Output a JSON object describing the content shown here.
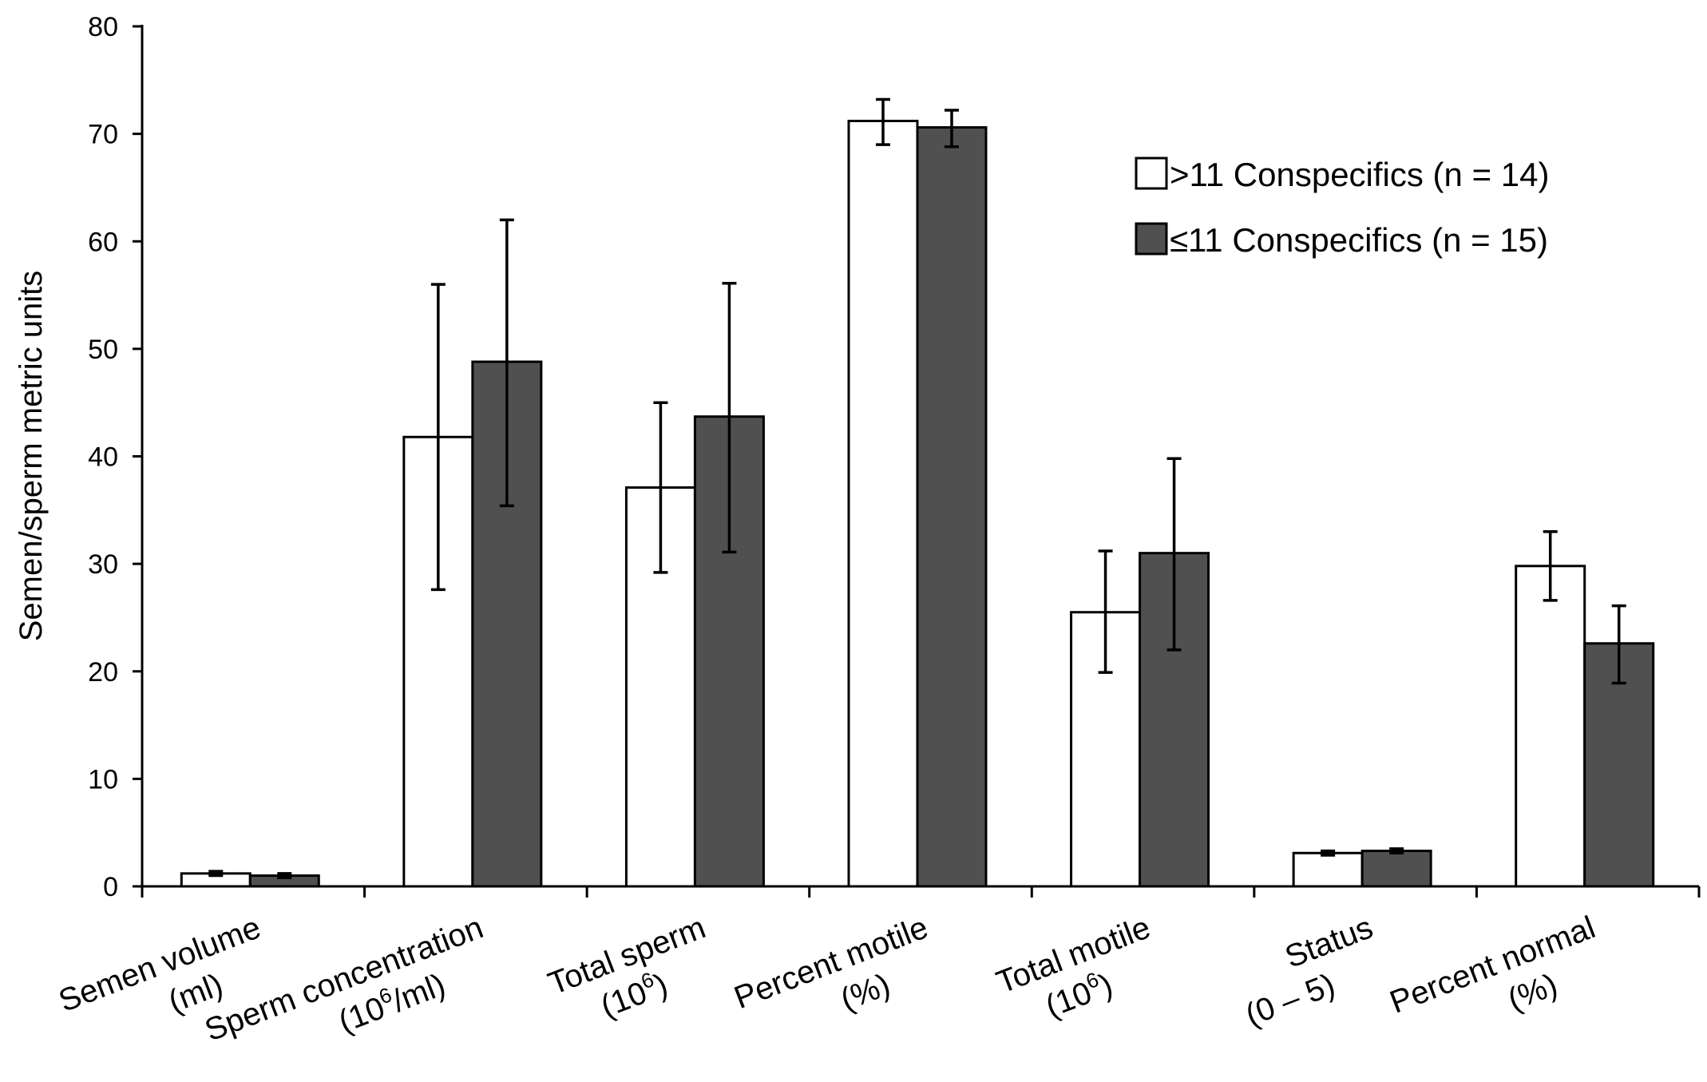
{
  "chart_data": {
    "type": "bar",
    "title": "",
    "xlabel": "",
    "ylabel": "Semen/sperm metric units",
    "ylim": [
      0,
      80
    ],
    "yticks": [
      0,
      10,
      20,
      30,
      40,
      50,
      60,
      70,
      80
    ],
    "legend_position": "top-right",
    "categories": [
      {
        "line1": "Semen volume",
        "line2": "(ml)",
        "line2_parts": [
          "(ml)"
        ]
      },
      {
        "line1": "Sperm concentration",
        "line2": "(10^6/ml)",
        "line2_parts": [
          "(10",
          "6",
          "/ml)"
        ]
      },
      {
        "line1": "Total sperm",
        "line2": "(10^6)",
        "line2_parts": [
          "(10",
          "6",
          ")"
        ]
      },
      {
        "line1": "Percent motile",
        "line2": "(%)",
        "line2_parts": [
          "(%)"
        ]
      },
      {
        "line1": "Total motile",
        "line2": "(10^6)",
        "line2_parts": [
          "(10",
          "6",
          ")"
        ]
      },
      {
        "line1": "Status",
        "line2": "(0 – 5)",
        "line2_parts": [
          "(0 – 5)"
        ]
      },
      {
        "line1": "Percent normal",
        "line2": "(%)",
        "line2_parts": [
          "(%)"
        ]
      }
    ],
    "series": [
      {
        "name": ">11 Conspecifics (n = 14)",
        "color": "#ffffff",
        "values": [
          1.2,
          41.8,
          37.1,
          71.2,
          25.5,
          3.1,
          29.8
        ],
        "error_low": [
          1.0,
          27.6,
          29.2,
          69.0,
          19.9,
          2.9,
          26.6
        ],
        "error_high": [
          1.4,
          56.0,
          45.0,
          73.2,
          31.2,
          3.3,
          33.0
        ]
      },
      {
        "name": "≤11 Conspecifics (n = 15)",
        "color": "#505050",
        "values": [
          1.0,
          48.8,
          43.7,
          70.6,
          31.0,
          3.3,
          22.6
        ],
        "error_low": [
          0.8,
          35.4,
          31.1,
          68.8,
          22.0,
          3.1,
          18.9
        ],
        "error_high": [
          1.2,
          62.0,
          56.1,
          72.2,
          39.8,
          3.5,
          26.1
        ]
      }
    ]
  }
}
